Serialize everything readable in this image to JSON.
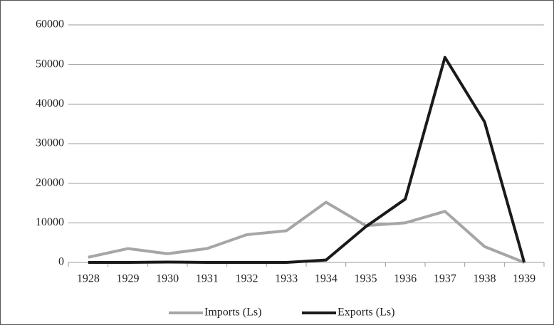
{
  "chart_data": {
    "type": "line",
    "categories": [
      "1928",
      "1929",
      "1930",
      "1931",
      "1932",
      "1933",
      "1934",
      "1935",
      "1936",
      "1937",
      "1938",
      "1939"
    ],
    "series": [
      {
        "name": "Imports (Ls)",
        "color": "#a6a6a6",
        "values": [
          1300,
          3500,
          2200,
          3500,
          7000,
          8000,
          15200,
          9300,
          10000,
          12900,
          4000,
          0
        ]
      },
      {
        "name": "Exports (Ls)",
        "color": "#1a1a1a",
        "values": [
          0,
          0,
          100,
          0,
          0,
          0,
          600,
          9000,
          16000,
          51800,
          35500,
          0
        ]
      }
    ],
    "ylim": [
      0,
      60000
    ],
    "yticks": [
      0,
      10000,
      20000,
      30000,
      40000,
      50000,
      60000
    ],
    "grid": true,
    "legend": "bottom"
  }
}
